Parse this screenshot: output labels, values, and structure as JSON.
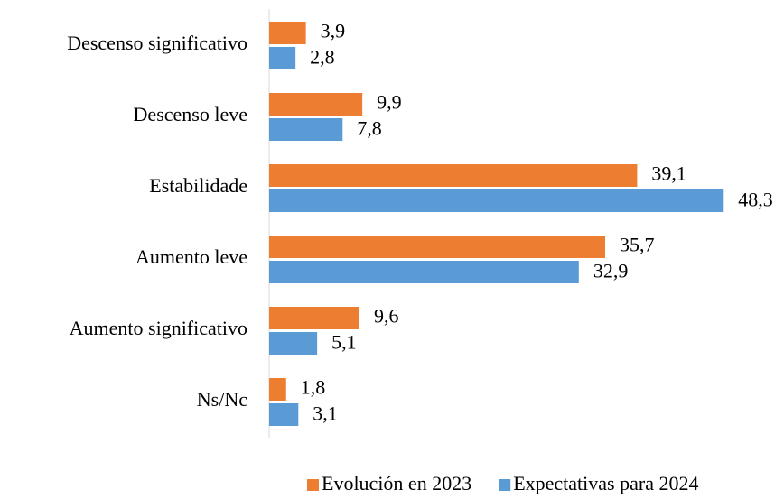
{
  "chart_data": {
    "type": "bar",
    "orientation": "horizontal",
    "categories": [
      "Descenso significativo",
      "Descenso leve",
      "Estabilidade",
      "Aumento leve",
      "Aumento significativo",
      "Ns/Nc"
    ],
    "series": [
      {
        "name": "Evolución en 2023",
        "color": "#ed7d31",
        "values": [
          3.9,
          9.9,
          39.1,
          35.7,
          9.6,
          1.8
        ],
        "value_labels": [
          "3,9",
          "9,9",
          "39,1",
          "35,7",
          "9,6",
          "1,8"
        ]
      },
      {
        "name": "Expectativas para 2024",
        "color": "#5b9bd5",
        "values": [
          2.8,
          7.8,
          48.3,
          32.9,
          5.1,
          3.1
        ],
        "value_labels": [
          "2,8",
          "7,8",
          "48,3",
          "32,9",
          "5,1",
          "3,1"
        ]
      }
    ],
    "xlim": [
      0,
      50
    ],
    "legend": "bottom"
  }
}
